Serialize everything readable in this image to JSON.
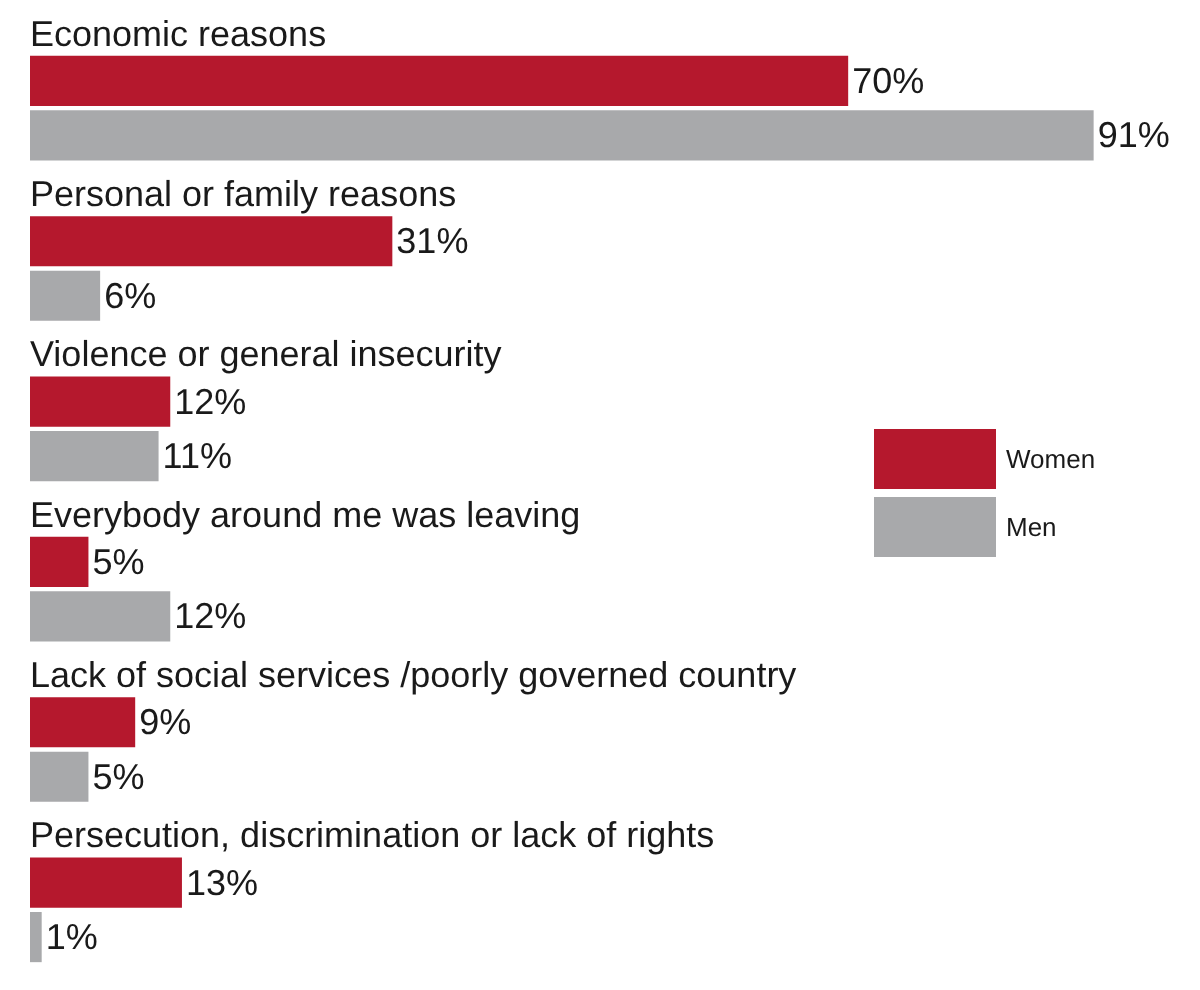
{
  "chart_data": {
    "type": "bar",
    "orientation": "horizontal",
    "categories": [
      "Economic reasons",
      "Personal or family reasons",
      "Violence or general insecurity",
      "Everybody around me was leaving",
      "Lack of social services /poorly governed country",
      "Persecution, discrimination or lack of rights"
    ],
    "series": [
      {
        "name": "Women",
        "color": "#b5182d",
        "values": [
          70,
          31,
          12,
          5,
          9,
          13
        ],
        "value_labels": [
          "70%",
          "31%",
          "12%",
          "5%",
          "9%",
          "13%"
        ]
      },
      {
        "name": "Men",
        "color": "#a8a9ab",
        "values": [
          91,
          6,
          11,
          12,
          5,
          1
        ],
        "value_labels": [
          "91%",
          "6%",
          "11%",
          "12%",
          "5%",
          "1%"
        ]
      }
    ],
    "legend": "right"
  }
}
